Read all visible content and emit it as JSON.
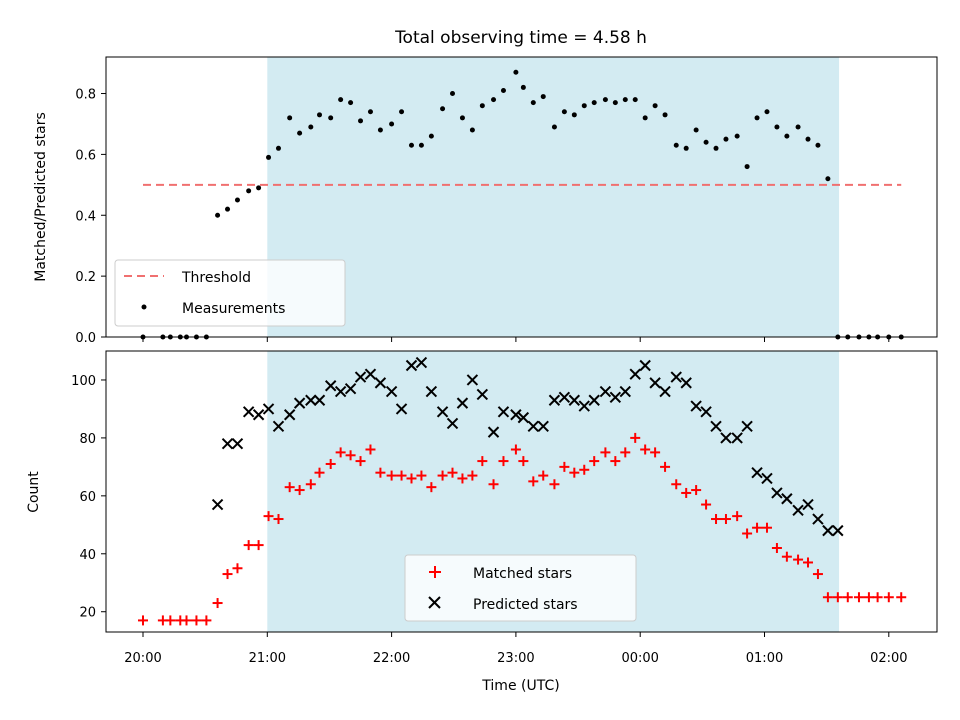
{
  "figure": {
    "title": "Total observing time = 4.58 h",
    "xlabel": "Time (UTC)",
    "x_ticks": [
      "20:00",
      "21:00",
      "22:00",
      "23:00",
      "00:00",
      "01:00",
      "02:00"
    ],
    "observing_window": {
      "start_hours": 1.0,
      "end_hours": 5.6,
      "color": "#d3ebf2"
    }
  },
  "chart_data": [
    {
      "type": "scatter",
      "ylabel": "Matched/Predicted stars",
      "ylim": [
        0,
        0.92
      ],
      "y_ticks": [
        "0.0",
        "0.2",
        "0.4",
        "0.6",
        "0.8"
      ],
      "legend": {
        "placement": "lower-left",
        "entries": [
          "Threshold",
          "Measurements"
        ]
      },
      "threshold": {
        "name": "Threshold",
        "value": 0.5,
        "x_range": [
          0.0,
          6.1
        ],
        "color": "#f07070"
      },
      "series": [
        {
          "name": "Measurements",
          "color": "#000000",
          "x": [
            0.0,
            0.16,
            0.22,
            0.3,
            0.35,
            0.43,
            0.51,
            0.6,
            0.68,
            0.76,
            0.85,
            0.93,
            1.01,
            1.09,
            1.18,
            1.26,
            1.35,
            1.42,
            1.51,
            1.59,
            1.67,
            1.75,
            1.83,
            1.91,
            2.0,
            2.08,
            2.16,
            2.24,
            2.32,
            2.41,
            2.49,
            2.57,
            2.65,
            2.73,
            2.82,
            2.9,
            3.0,
            3.06,
            3.14,
            3.22,
            3.31,
            3.39,
            3.47,
            3.55,
            3.63,
            3.72,
            3.8,
            3.88,
            3.96,
            4.04,
            4.12,
            4.2,
            4.29,
            4.37,
            4.45,
            4.53,
            4.61,
            4.69,
            4.78,
            4.86,
            4.94,
            5.02,
            5.1,
            5.18,
            5.27,
            5.35,
            5.43,
            5.51,
            5.59,
            5.67,
            5.76,
            5.84,
            5.91,
            6.0,
            6.1
          ],
          "y": [
            0.0,
            0.0,
            0.0,
            0.0,
            0.0,
            0.0,
            0.0,
            0.4,
            0.42,
            0.45,
            0.48,
            0.49,
            0.59,
            0.62,
            0.72,
            0.67,
            0.69,
            0.73,
            0.72,
            0.78,
            0.77,
            0.71,
            0.74,
            0.68,
            0.7,
            0.74,
            0.63,
            0.63,
            0.66,
            0.75,
            0.8,
            0.72,
            0.68,
            0.76,
            0.78,
            0.81,
            0.87,
            0.82,
            0.77,
            0.79,
            0.69,
            0.74,
            0.73,
            0.76,
            0.77,
            0.78,
            0.77,
            0.78,
            0.78,
            0.72,
            0.76,
            0.73,
            0.63,
            0.62,
            0.68,
            0.64,
            0.62,
            0.65,
            0.66,
            0.56,
            0.72,
            0.74,
            0.69,
            0.66,
            0.69,
            0.65,
            0.63,
            0.52,
            0.0,
            0.0,
            0.0,
            0.0,
            0.0,
            0.0,
            0.0
          ]
        }
      ]
    },
    {
      "type": "scatter",
      "ylabel": "Count",
      "ylim": [
        13,
        110
      ],
      "y_ticks": [
        "20",
        "40",
        "60",
        "80",
        "100"
      ],
      "legend": {
        "placement": "lower-center",
        "entries": [
          "Matched stars",
          "Predicted stars"
        ]
      },
      "series": [
        {
          "name": "Matched stars",
          "color": "#ff0000",
          "x": [
            0.0,
            0.16,
            0.22,
            0.3,
            0.35,
            0.43,
            0.51,
            0.6,
            0.68,
            0.76,
            0.85,
            0.93,
            1.01,
            1.09,
            1.18,
            1.26,
            1.35,
            1.42,
            1.51,
            1.59,
            1.67,
            1.75,
            1.83,
            1.91,
            2.0,
            2.08,
            2.16,
            2.24,
            2.32,
            2.41,
            2.49,
            2.57,
            2.65,
            2.73,
            2.82,
            2.9,
            3.0,
            3.06,
            3.14,
            3.22,
            3.31,
            3.39,
            3.47,
            3.55,
            3.63,
            3.72,
            3.8,
            3.88,
            3.96,
            4.04,
            4.12,
            4.2,
            4.29,
            4.37,
            4.45,
            4.53,
            4.61,
            4.69,
            4.78,
            4.86,
            4.94,
            5.02,
            5.1,
            5.18,
            5.27,
            5.35,
            5.43,
            5.51,
            5.59,
            5.67,
            5.76,
            5.84,
            5.91,
            6.0,
            6.1
          ],
          "y": [
            17,
            17,
            17,
            17,
            17,
            17,
            17,
            23,
            33,
            35,
            43,
            43,
            53,
            52,
            63,
            62,
            64,
            68,
            71,
            75,
            74,
            72,
            76,
            68,
            67,
            67,
            66,
            67,
            63,
            67,
            68,
            66,
            67,
            72,
            64,
            72,
            76,
            72,
            65,
            67,
            64,
            70,
            68,
            69,
            72,
            75,
            72,
            75,
            80,
            76,
            75,
            70,
            64,
            61,
            62,
            57,
            52,
            52,
            53,
            47,
            49,
            49,
            42,
            39,
            38,
            37,
            33,
            25,
            25,
            25,
            25,
            25,
            25,
            25,
            25
          ]
        },
        {
          "name": "Predicted stars",
          "color": "#000000",
          "x": [
            0.6,
            0.68,
            0.76,
            0.85,
            0.93,
            1.01,
            1.09,
            1.18,
            1.26,
            1.35,
            1.42,
            1.51,
            1.59,
            1.67,
            1.75,
            1.83,
            1.91,
            2.0,
            2.08,
            2.16,
            2.24,
            2.32,
            2.41,
            2.49,
            2.57,
            2.65,
            2.73,
            2.82,
            2.9,
            3.0,
            3.06,
            3.14,
            3.22,
            3.31,
            3.39,
            3.47,
            3.55,
            3.63,
            3.72,
            3.8,
            3.88,
            3.96,
            4.04,
            4.12,
            4.2,
            4.29,
            4.37,
            4.45,
            4.53,
            4.61,
            4.69,
            4.78,
            4.86,
            4.94,
            5.02,
            5.1,
            5.18,
            5.27,
            5.35,
            5.43,
            5.51,
            5.59
          ],
          "y": [
            57,
            78,
            78,
            89,
            88,
            90,
            84,
            88,
            92,
            93,
            93,
            98,
            96,
            97,
            101,
            102,
            99,
            96,
            90,
            105,
            106,
            96,
            89,
            85,
            92,
            100,
            95,
            82,
            89,
            88,
            87,
            84,
            84,
            93,
            94,
            93,
            91,
            93,
            96,
            94,
            96,
            102,
            105,
            99,
            96,
            101,
            99,
            91,
            89,
            84,
            80,
            80,
            84,
            68,
            66,
            61,
            59,
            55,
            57,
            52,
            48,
            48
          ]
        }
      ]
    }
  ]
}
